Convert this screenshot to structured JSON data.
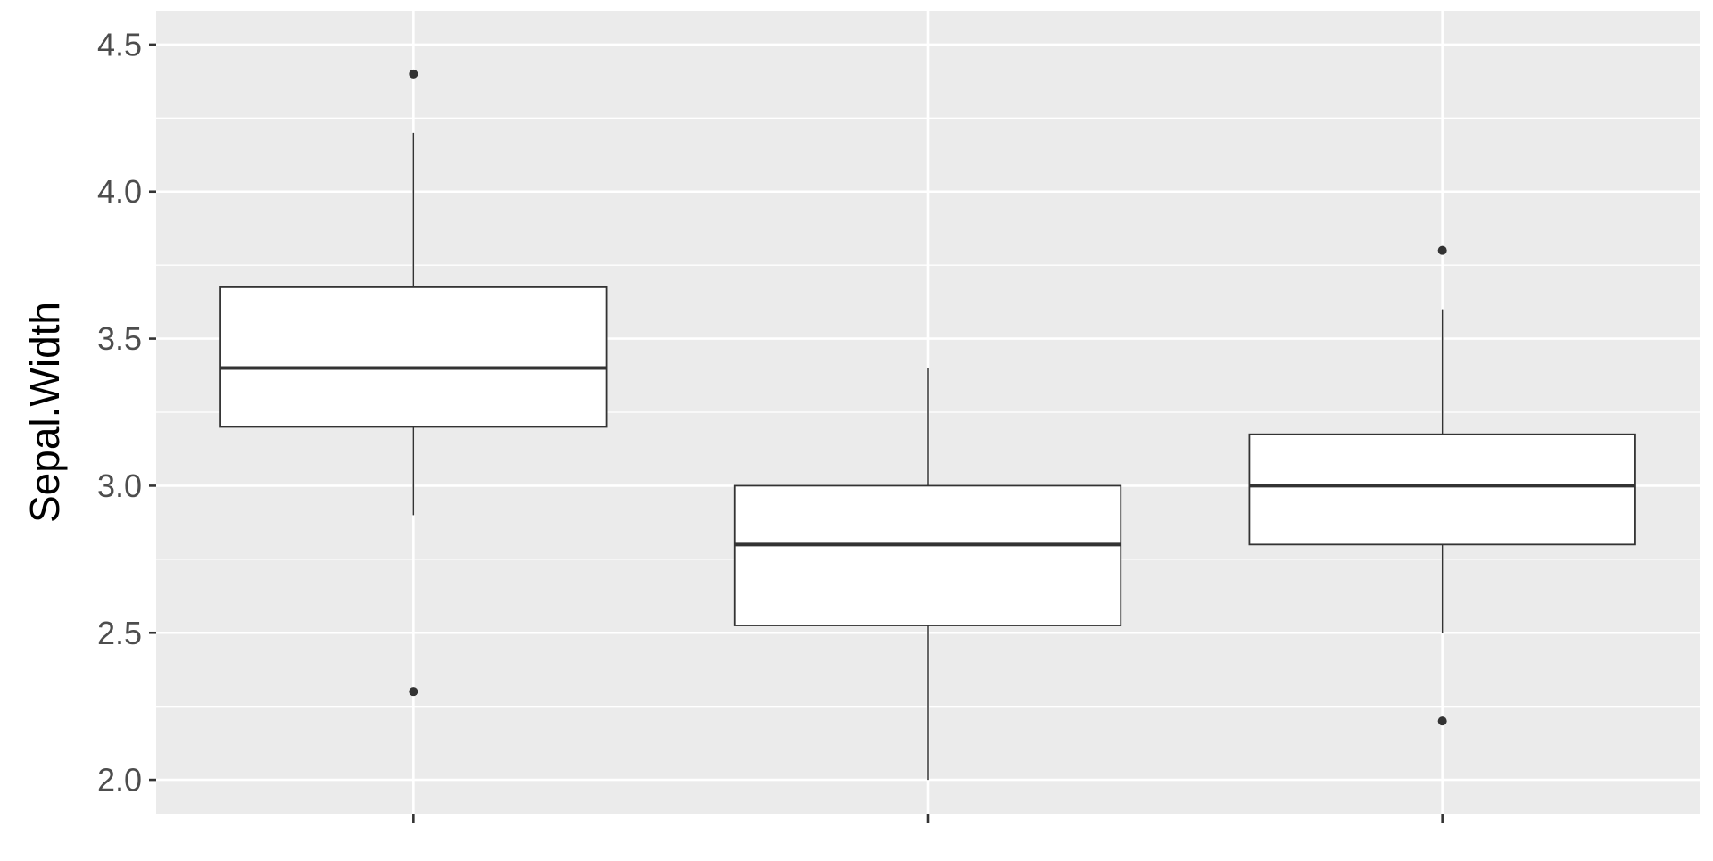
{
  "chart_data": {
    "type": "box",
    "title": "",
    "xlabel": "",
    "ylabel": "Sepal.Width",
    "ylim": [
      1.885,
      4.615
    ],
    "yticks": [
      "2.0",
      "2.5",
      "3.0",
      "3.5",
      "4.0",
      "4.5"
    ],
    "grid": true,
    "legend": "none",
    "colors": {
      "panel_background": "#ebebeb",
      "grid": "#ffffff",
      "box_fill": "#ffffff",
      "box_stroke": "#333333",
      "tick_label": "#4d4d4d",
      "axis_title": "#000000"
    },
    "boxes": [
      {
        "whisker_low": 2.9,
        "q1": 3.2,
        "median": 3.4,
        "q3": 3.675,
        "whisker_high": 4.2,
        "outliers": [
          4.4,
          2.3
        ]
      },
      {
        "whisker_low": 2.0,
        "q1": 2.525,
        "median": 2.8,
        "q3": 3.0,
        "whisker_high": 3.4,
        "outliers": []
      },
      {
        "whisker_low": 2.5,
        "q1": 2.8,
        "median": 3.0,
        "q3": 3.175,
        "whisker_high": 3.6,
        "outliers": [
          3.8,
          2.2
        ]
      }
    ]
  }
}
